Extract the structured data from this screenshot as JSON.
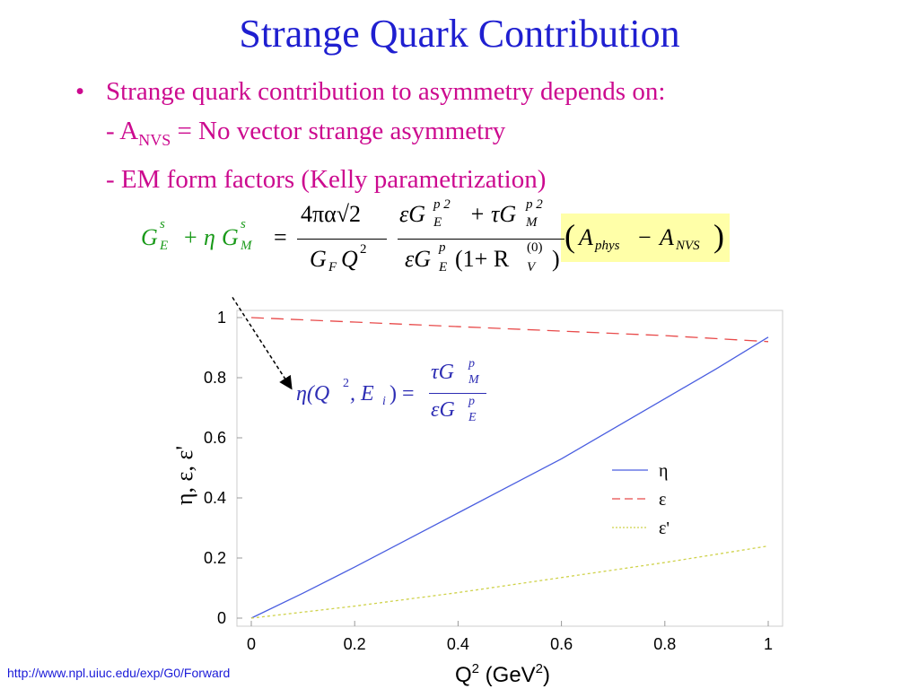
{
  "slide": {
    "title": "Strange Quark Contribution",
    "bullet_symbol": "•",
    "bullet_text": "Strange quark contribution to asymmetry depends on:",
    "sub_item_1_prefix": "- A",
    "sub_item_1_subscript": "NVS",
    "sub_item_1_rest": " = No vector strange asymmetry",
    "sub_item_2": "- EM form factors (Kelly parametrization)",
    "footer_url": "http://www.npl.uiuc.edu/exp/G0/Forward"
  },
  "colors": {
    "title": "#1f1fd0",
    "bullet_text": "#cc0a8f",
    "equation_lhs": "#1a9a1a",
    "highlight": "#ffffa8",
    "eta_equation": "#2d2db4",
    "footer": "#1a1ad8",
    "eta_curve": "#4a5ee0",
    "eps_curve": "#e84a4a",
    "epsprime_curve": "#cfd24a"
  },
  "equation": {
    "lhs_1": "G",
    "lhs_1_sup": "s",
    "lhs_1_sub": "E",
    "plus": "+",
    "eta": "η",
    "lhs_2": "G",
    "lhs_2_sup": "s",
    "lhs_2_sub": "M",
    "equals": "=",
    "num1": "4πα√2",
    "den1": "G",
    "den1_sub": "F",
    "den1_rest": "Q",
    "den1_sup": "2",
    "num2": "εG",
    "num2_sup": "p 2",
    "num2_sub": "E",
    "num2_mid": "+ τG",
    "num2_sup2": "p 2",
    "num2_sub2": "M",
    "den2": "εG",
    "den2_sup": "p",
    "den2_sub": "E",
    "den2_rest": "(1+ R",
    "den2_sup2": "(0)",
    "den2_sub2": "V",
    "den2_close": ")",
    "paren_open": "(",
    "a_phys": "A",
    "a_phys_sub": "phys",
    "minus": "−",
    "a_nvs": "A",
    "a_nvs_sub": "NVS",
    "paren_close": ")"
  },
  "eta_equation": {
    "lhs": "η(Q",
    "lhs_sup": "2",
    "lhs_rest": ", E",
    "lhs_sub": "i",
    "lhs_close": ") =",
    "num": "τG",
    "num_sup": "p",
    "num_sub": "M",
    "den": "εG",
    "den_sup": "p",
    "den_sub": "E"
  },
  "chart_data": {
    "type": "line",
    "xlabel_main": "Q",
    "xlabel_sup": "2",
    "xlabel_unit_open": " (GeV",
    "xlabel_unit_sup": "2",
    "xlabel_unit_close": ")",
    "ylabel": "η, ε, ε'",
    "xlim": [
      0,
      1
    ],
    "ylim": [
      0,
      1
    ],
    "x_ticks": [
      "0",
      "0.2",
      "0.4",
      "0.6",
      "0.8",
      "1"
    ],
    "y_ticks": [
      "0",
      "0.2",
      "0.4",
      "0.6",
      "0.8",
      "1"
    ],
    "legend_position": "center-right",
    "series": [
      {
        "name": "η",
        "style": "solid",
        "x": [
          0,
          0.1,
          0.2,
          0.3,
          0.4,
          0.5,
          0.6,
          0.7,
          0.8,
          0.9,
          1.0
        ],
        "y": [
          0,
          0.083,
          0.17,
          0.26,
          0.35,
          0.44,
          0.53,
          0.63,
          0.73,
          0.83,
          0.935
        ]
      },
      {
        "name": "ε",
        "style": "dashed",
        "x": [
          0,
          0.2,
          0.4,
          0.6,
          0.8,
          1.0
        ],
        "y": [
          1.0,
          0.985,
          0.97,
          0.955,
          0.94,
          0.92
        ]
      },
      {
        "name": "ε'",
        "style": "dotted",
        "x": [
          0,
          0.2,
          0.4,
          0.6,
          0.8,
          1.0
        ],
        "y": [
          0,
          0.04,
          0.085,
          0.135,
          0.185,
          0.24
        ]
      }
    ]
  }
}
